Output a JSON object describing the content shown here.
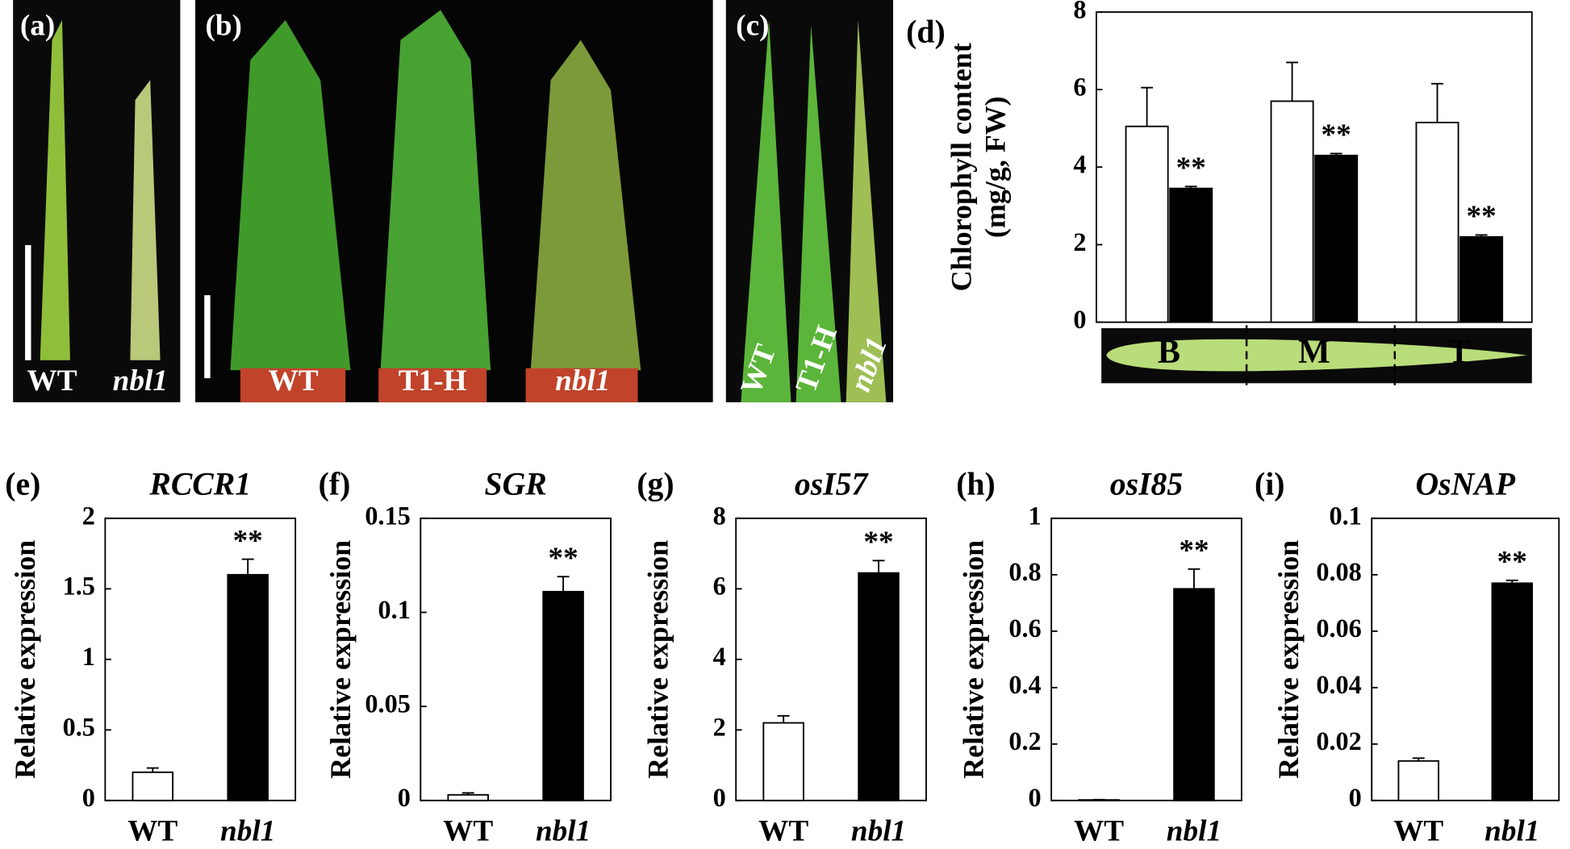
{
  "photos": {
    "a": {
      "label": "(a)",
      "texts": [
        "WT",
        "nbl1"
      ]
    },
    "b": {
      "label": "(b)",
      "texts": [
        "WT",
        "T1-H",
        "nbl1"
      ]
    },
    "c": {
      "label": "(c)",
      "texts": [
        "WT",
        "T1-H",
        "nbl1"
      ]
    }
  },
  "chart_data": [
    {
      "type": "bar",
      "panel_label": "(d)",
      "y_label": [
        "Chlorophyll content",
        "(mg/g, FW)"
      ],
      "categories": [
        "B",
        "M",
        "T"
      ],
      "series": [
        {
          "color": "#ffffff",
          "values": [
            5.05,
            5.7,
            5.15
          ],
          "errors": [
            1.0,
            1.0,
            1.0
          ]
        },
        {
          "color": "#000000",
          "values": [
            3.45,
            4.3,
            2.2
          ],
          "errors": [
            0.05,
            0.05,
            0.05
          ],
          "annotations": [
            "**",
            "**",
            "**"
          ]
        }
      ],
      "ylim": [
        0,
        8
      ],
      "yticks": [
        0,
        2,
        4,
        6,
        8
      ]
    },
    {
      "type": "bar",
      "panel_label": "(e)",
      "title": "RCCR1",
      "y_label": [
        "Relative expression"
      ],
      "categories": [
        "WT",
        "nbl1"
      ],
      "series": [
        {
          "colors": [
            "#ffffff",
            "#000000"
          ],
          "values": [
            0.2,
            1.6
          ],
          "errors": [
            0.03,
            0.11
          ],
          "annotations": [
            null,
            "**"
          ]
        }
      ],
      "ylim": [
        0,
        2
      ],
      "yticks": [
        0,
        0.5,
        1,
        1.5,
        2
      ]
    },
    {
      "type": "bar",
      "panel_label": "(f)",
      "title": "SGR",
      "y_label": [
        "Relative expression"
      ],
      "categories": [
        "WT",
        "nbl1"
      ],
      "series": [
        {
          "colors": [
            "#ffffff",
            "#000000"
          ],
          "values": [
            0.003,
            0.111
          ],
          "errors": [
            0.001,
            0.008
          ],
          "annotations": [
            null,
            "**"
          ]
        }
      ],
      "ylim": [
        0,
        0.15
      ],
      "yticks": [
        0,
        0.05,
        0.1,
        0.15
      ]
    },
    {
      "type": "bar",
      "panel_label": "(g)",
      "title": "osI57",
      "y_label": [
        "Relative expression"
      ],
      "categories": [
        "WT",
        "nbl1"
      ],
      "series": [
        {
          "colors": [
            "#ffffff",
            "#000000"
          ],
          "values": [
            2.2,
            6.45
          ],
          "errors": [
            0.2,
            0.35
          ],
          "annotations": [
            null,
            "**"
          ]
        }
      ],
      "ylim": [
        0,
        8
      ],
      "yticks": [
        0,
        2,
        4,
        6,
        8
      ]
    },
    {
      "type": "bar",
      "panel_label": "(h)",
      "title": "osI85",
      "y_label": [
        "Relative expression"
      ],
      "categories": [
        "WT",
        "nbl1"
      ],
      "series": [
        {
          "colors": [
            "#ffffff",
            "#000000"
          ],
          "values": [
            0.002,
            0.75
          ],
          "errors": [
            0.001,
            0.07
          ],
          "annotations": [
            null,
            "**"
          ]
        }
      ],
      "ylim": [
        0,
        1
      ],
      "yticks": [
        0,
        0.2,
        0.4,
        0.6,
        0.8,
        1
      ]
    },
    {
      "type": "bar",
      "panel_label": "(i)",
      "title": "OsNAP",
      "y_label": [
        "Relative expression"
      ],
      "categories": [
        "WT",
        "nbl1"
      ],
      "series": [
        {
          "colors": [
            "#ffffff",
            "#000000"
          ],
          "values": [
            0.014,
            0.077
          ],
          "errors": [
            0.001,
            0.001
          ],
          "annotations": [
            null,
            "**"
          ]
        }
      ],
      "ylim": [
        0,
        0.1
      ],
      "yticks": [
        0,
        0.02,
        0.04,
        0.06,
        0.08,
        0.1
      ]
    }
  ]
}
